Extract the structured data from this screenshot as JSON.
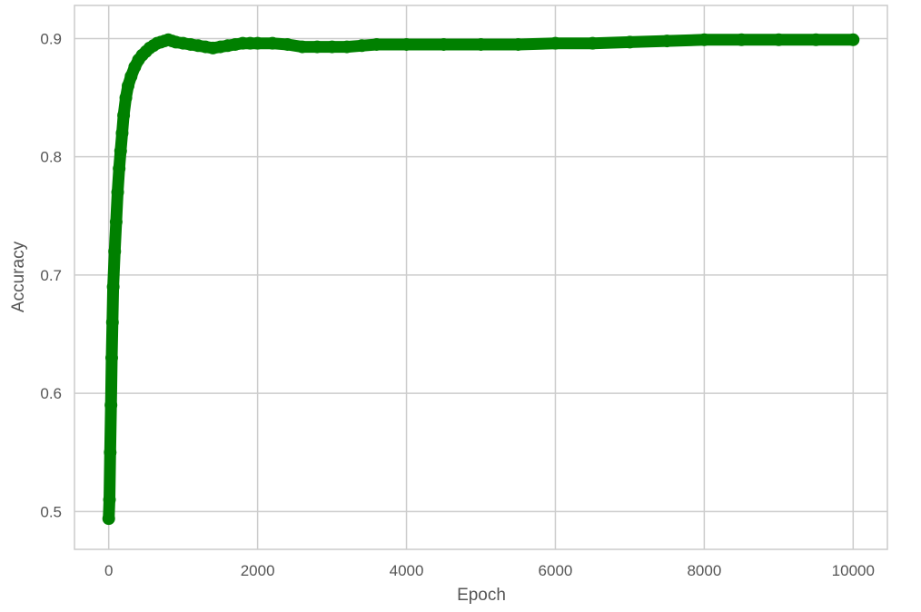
{
  "chart_data": {
    "type": "scatter",
    "title": "",
    "xlabel": "Epoch",
    "ylabel": "Accuracy",
    "xlim": [
      -460,
      10460
    ],
    "ylim": [
      0.468,
      0.928
    ],
    "xticks": [
      0,
      2000,
      4000,
      6000,
      8000,
      10000
    ],
    "xtick_labels": [
      "0",
      "2000",
      "4000",
      "6000",
      "8000",
      "10000"
    ],
    "yticks": [
      0.5,
      0.6,
      0.7,
      0.8,
      0.9
    ],
    "ytick_labels": [
      "0.5",
      "0.6",
      "0.7",
      "0.8",
      "0.9"
    ],
    "grid": true,
    "colors": {
      "series": "#008000",
      "grid": "#cccccc",
      "background": "#ffffff",
      "text": "#555555"
    },
    "series": [
      {
        "x": [
          0,
          10,
          20,
          30,
          40,
          50,
          60,
          80,
          100,
          120,
          140,
          160,
          180,
          200,
          230,
          260,
          300,
          350,
          400,
          450,
          500,
          550,
          600,
          650,
          700,
          750,
          800,
          850,
          900,
          1000,
          1100,
          1200,
          1300,
          1400,
          1500,
          1600,
          1700,
          1800,
          1900,
          2000,
          2200,
          2400,
          2600,
          2800,
          3000,
          3200,
          3400,
          3600,
          4000,
          4500,
          5000,
          5500,
          6000,
          6500,
          7000,
          7500,
          8000,
          8500,
          9000,
          9500,
          10000
        ],
        "y": [
          0.494,
          0.51,
          0.55,
          0.59,
          0.63,
          0.66,
          0.69,
          0.72,
          0.745,
          0.77,
          0.79,
          0.805,
          0.82,
          0.835,
          0.85,
          0.86,
          0.868,
          0.876,
          0.882,
          0.886,
          0.889,
          0.892,
          0.894,
          0.896,
          0.897,
          0.898,
          0.899,
          0.898,
          0.897,
          0.896,
          0.895,
          0.894,
          0.893,
          0.892,
          0.893,
          0.894,
          0.895,
          0.896,
          0.896,
          0.896,
          0.896,
          0.895,
          0.893,
          0.893,
          0.893,
          0.893,
          0.894,
          0.895,
          0.895,
          0.895,
          0.895,
          0.895,
          0.896,
          0.896,
          0.897,
          0.898,
          0.899,
          0.899,
          0.899,
          0.899,
          0.899
        ]
      }
    ]
  }
}
